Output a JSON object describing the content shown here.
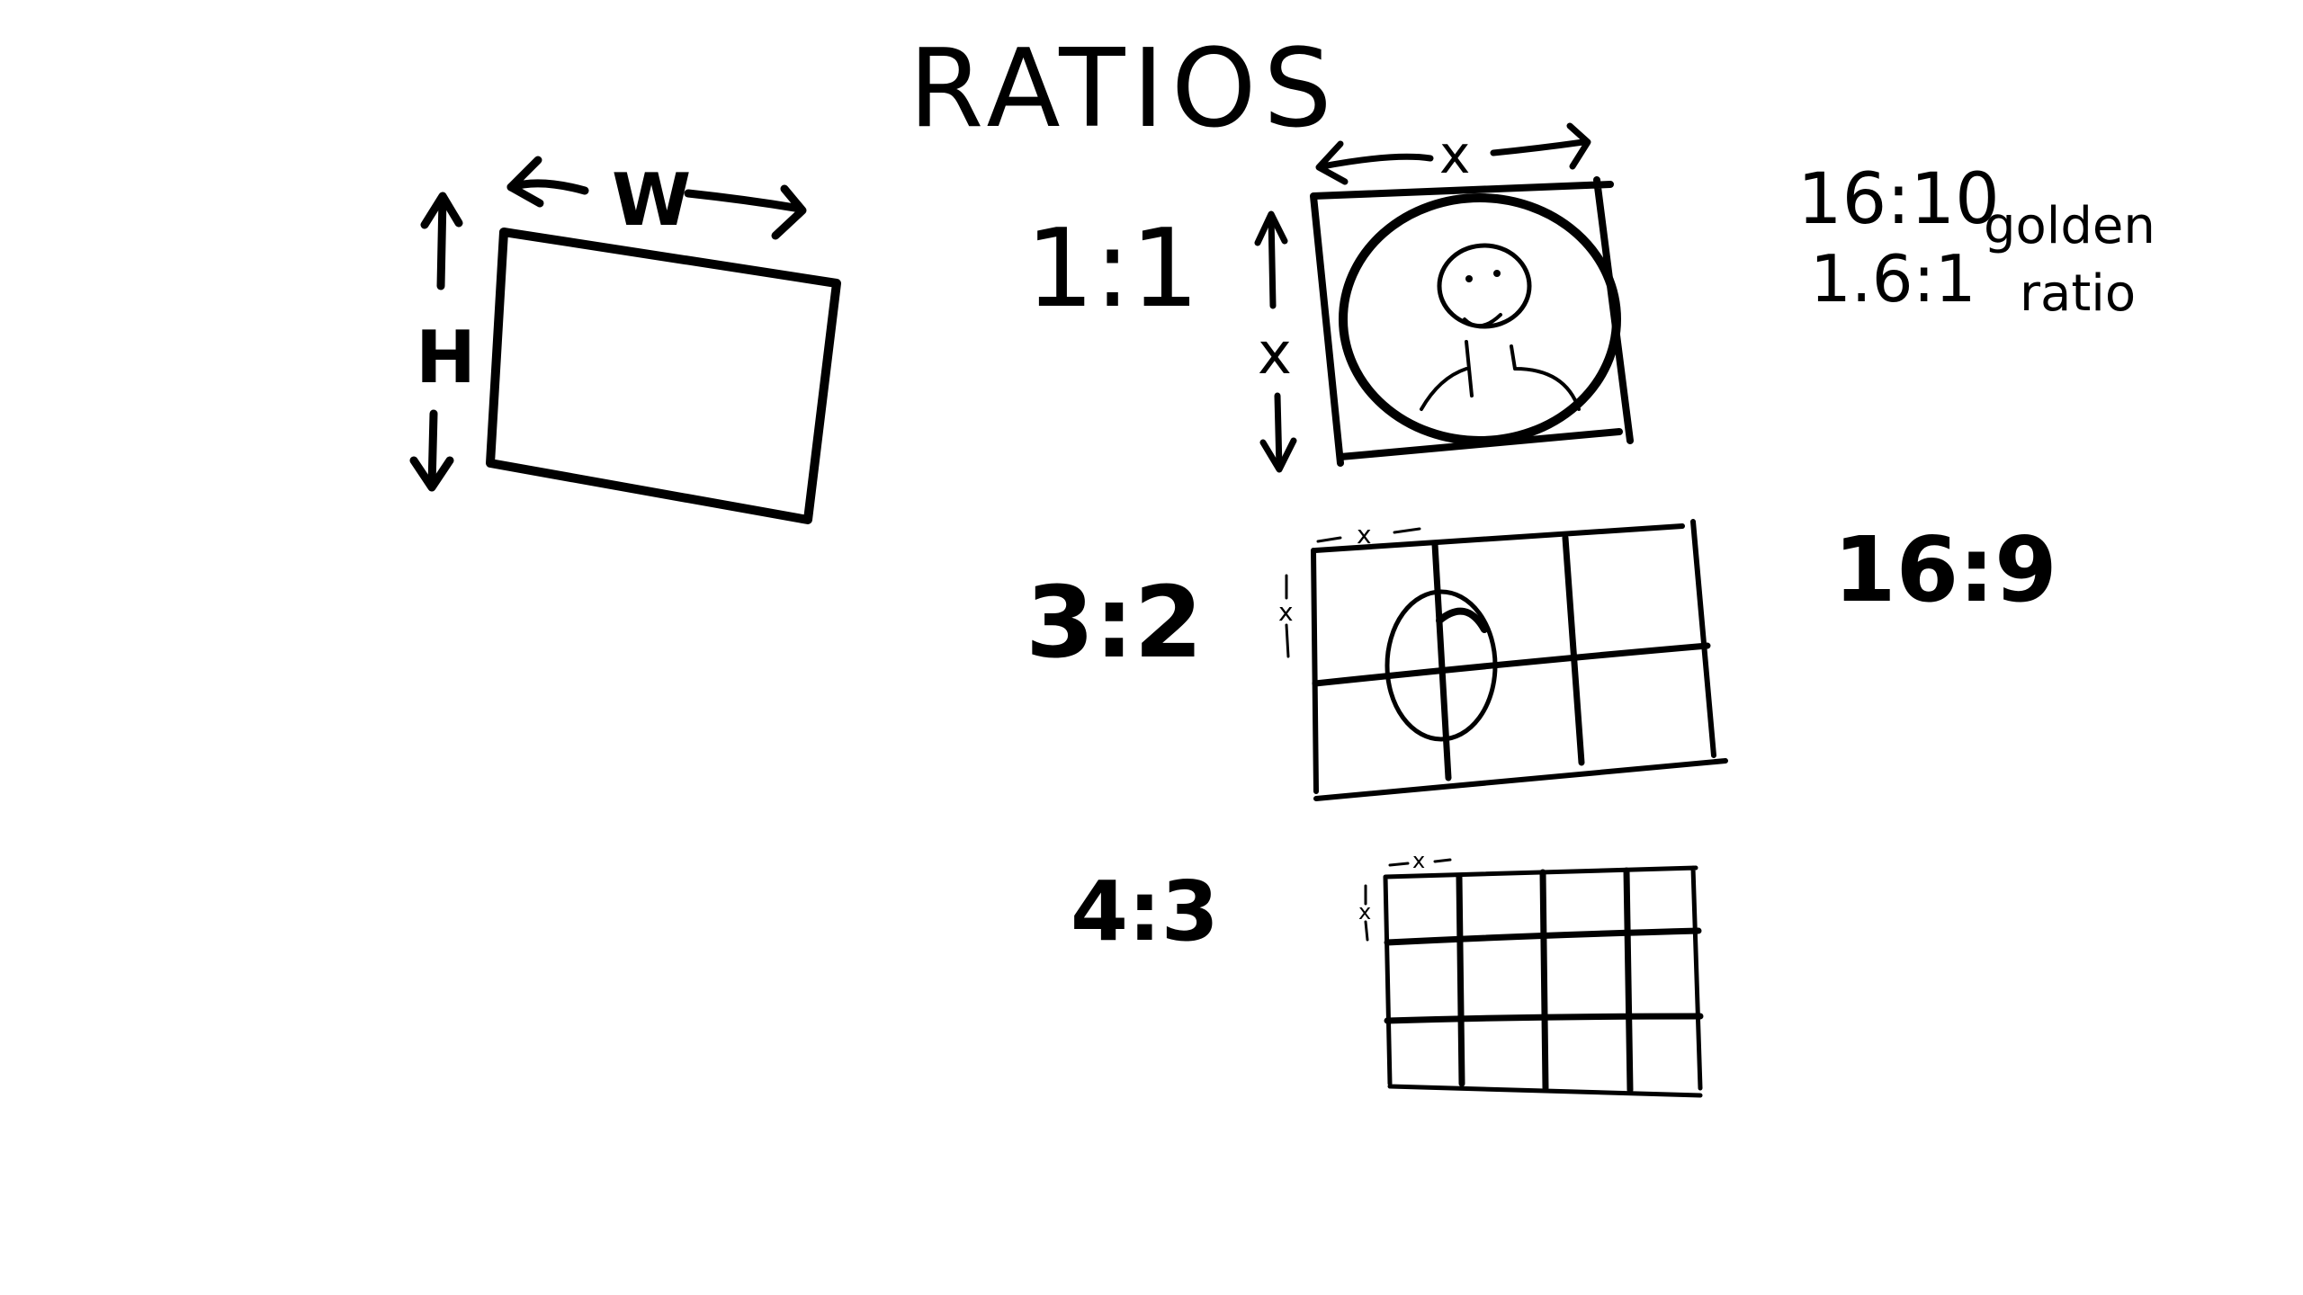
{
  "title": "RATIOS",
  "generic_rect": {
    "width_label": "W",
    "height_label": "H"
  },
  "ratios": [
    {
      "label": "1:1",
      "dimension_label": "x"
    },
    {
      "label": "3:2",
      "dimension_label": "x"
    },
    {
      "label": "4:3",
      "dimension_label": "x"
    }
  ],
  "side_notes": {
    "ratio_16_10": "16:10",
    "ratio_1_6_1": "1.6:1",
    "golden_line1": "golden",
    "golden_line2": "ratio",
    "ratio_16_9": "16:9"
  },
  "colors": {
    "ink": "#000000",
    "paper": "#ffffff"
  }
}
